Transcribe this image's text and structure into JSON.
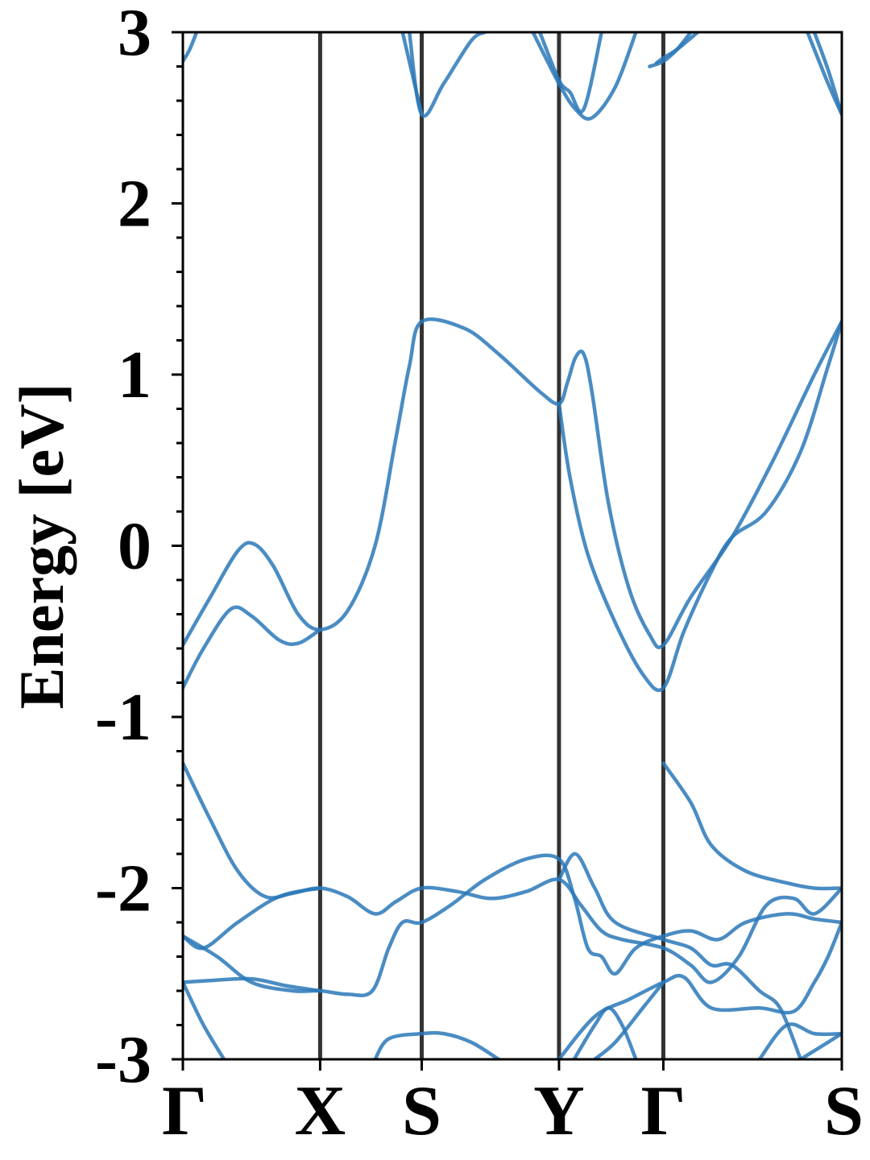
{
  "chart_data": {
    "type": "line",
    "title": "",
    "xlabel": "",
    "ylabel": "Energy [eV]",
    "ylim": [
      -3,
      3
    ],
    "yticks": [
      {
        "value": 3,
        "label": "3"
      },
      {
        "value": 2,
        "label": "2"
      },
      {
        "value": 1,
        "label": "1"
      },
      {
        "value": 0,
        "label": "0"
      },
      {
        "value": -1,
        "label": "-1"
      },
      {
        "value": -2,
        "label": "-2"
      },
      {
        "value": -3,
        "label": "-3"
      }
    ],
    "y_minor_step": 0.2,
    "kpoints": [
      {
        "label": "Γ",
        "x": 0
      },
      {
        "label": "X",
        "x": 1
      },
      {
        "label": "S",
        "x": 1.74
      },
      {
        "label": "Y",
        "x": 2.74
      },
      {
        "label": "Γ",
        "x": 3.5
      },
      {
        "label": "S",
        "x": 4.8
      }
    ],
    "xlim": [
      0,
      4.8
    ],
    "grid": false,
    "line_color": "#2a78b9",
    "kline_color": "#333333",
    "bands": [
      [
        [
          0,
          -0.58
        ],
        [
          0.2,
          -0.3
        ],
        [
          0.4,
          -0.03
        ],
        [
          0.52,
          0.01
        ],
        [
          0.66,
          -0.12
        ],
        [
          0.84,
          -0.4
        ],
        [
          1.0,
          -0.49
        ],
        [
          1.2,
          -0.38
        ],
        [
          1.4,
          0.0
        ],
        [
          1.55,
          0.62
        ],
        [
          1.65,
          1.05
        ],
        [
          1.74,
          1.31
        ],
        [
          2.05,
          1.27
        ],
        [
          2.3,
          1.12
        ],
        [
          2.6,
          0.9
        ],
        [
          2.74,
          0.83
        ],
        [
          2.8,
          0.95
        ],
        [
          2.86,
          1.1
        ],
        [
          2.92,
          1.12
        ],
        [
          2.98,
          0.9
        ],
        [
          3.1,
          0.25
        ],
        [
          3.25,
          -0.25
        ],
        [
          3.4,
          -0.52
        ],
        [
          3.5,
          -0.58
        ],
        [
          3.7,
          -0.3
        ],
        [
          4.0,
          0.05
        ],
        [
          4.3,
          0.5
        ],
        [
          4.6,
          1.0
        ],
        [
          4.8,
          1.31
        ]
      ],
      [
        [
          0,
          -0.83
        ],
        [
          0.15,
          -0.6
        ],
        [
          0.35,
          -0.37
        ],
        [
          0.5,
          -0.41
        ],
        [
          0.7,
          -0.55
        ],
        [
          0.84,
          -0.57
        ],
        [
          1.0,
          -0.49
        ]
      ],
      [
        [
          2.74,
          0.83
        ],
        [
          2.82,
          0.4
        ],
        [
          2.95,
          -0.05
        ],
        [
          3.15,
          -0.45
        ],
        [
          3.35,
          -0.75
        ],
        [
          3.5,
          -0.83
        ],
        [
          3.65,
          -0.5
        ],
        [
          3.85,
          -0.15
        ],
        [
          4.0,
          0.05
        ],
        [
          4.25,
          0.2
        ],
        [
          4.5,
          0.55
        ],
        [
          4.7,
          1.05
        ],
        [
          4.8,
          1.31
        ]
      ],
      [
        [
          0,
          -1.27
        ],
        [
          0.2,
          -1.6
        ],
        [
          0.4,
          -1.9
        ],
        [
          0.6,
          -2.05
        ],
        [
          0.8,
          -2.03
        ],
        [
          1.0,
          -2.0
        ],
        [
          1.2,
          -2.05
        ],
        [
          1.4,
          -2.15
        ],
        [
          1.55,
          -2.08
        ],
        [
          1.74,
          -2.0
        ],
        [
          2.0,
          -2.02
        ],
        [
          2.25,
          -2.06
        ],
        [
          2.5,
          -2.02
        ],
        [
          2.74,
          -1.95
        ],
        [
          2.9,
          -2.1
        ],
        [
          3.05,
          -2.25
        ],
        [
          3.2,
          -2.3
        ],
        [
          3.5,
          -2.35
        ],
        [
          3.7,
          -2.45
        ],
        [
          3.85,
          -2.55
        ],
        [
          4.05,
          -2.4
        ],
        [
          4.25,
          -2.1
        ],
        [
          4.45,
          -2.06
        ],
        [
          4.6,
          -2.15
        ],
        [
          4.8,
          -2.0
        ]
      ],
      [
        [
          0,
          -2.28
        ],
        [
          0.15,
          -2.35
        ],
        [
          0.4,
          -2.2
        ],
        [
          0.7,
          -2.05
        ],
        [
          1.0,
          -2.0
        ]
      ],
      [
        [
          0,
          -2.28
        ],
        [
          0.25,
          -2.4
        ],
        [
          0.5,
          -2.55
        ],
        [
          0.8,
          -2.6
        ],
        [
          1.0,
          -2.6
        ],
        [
          1.2,
          -2.62
        ],
        [
          1.38,
          -2.6
        ],
        [
          1.5,
          -2.35
        ],
        [
          1.6,
          -2.2
        ],
        [
          1.74,
          -2.2
        ],
        [
          1.95,
          -2.1
        ],
        [
          2.2,
          -1.95
        ],
        [
          2.5,
          -1.83
        ],
        [
          2.74,
          -1.83
        ],
        [
          2.85,
          -2.05
        ],
        [
          2.95,
          -2.35
        ],
        [
          3.05,
          -2.4
        ],
        [
          3.15,
          -2.5
        ],
        [
          3.3,
          -2.35
        ],
        [
          3.5,
          -2.28
        ],
        [
          3.7,
          -2.25
        ],
        [
          3.9,
          -2.3
        ],
        [
          4.1,
          -2.2
        ],
        [
          4.4,
          -2.15
        ],
        [
          4.6,
          -2.18
        ],
        [
          4.8,
          -2.2
        ]
      ],
      [
        [
          0,
          -2.55
        ],
        [
          0.2,
          -2.54
        ],
        [
          0.5,
          -2.53
        ],
        [
          0.75,
          -2.57
        ],
        [
          1.0,
          -2.6
        ]
      ],
      [
        [
          0,
          -2.55
        ],
        [
          0.15,
          -2.8
        ],
        [
          0.3,
          -3.0
        ]
      ],
      [
        [
          2.74,
          -1.95
        ],
        [
          2.86,
          -1.8
        ],
        [
          3.0,
          -2.0
        ],
        [
          3.15,
          -2.2
        ],
        [
          3.5,
          -2.3
        ],
        [
          3.7,
          -2.35
        ],
        [
          3.85,
          -2.45
        ],
        [
          4.0,
          -2.45
        ],
        [
          4.2,
          -2.6
        ],
        [
          4.35,
          -2.7
        ],
        [
          4.5,
          -3.0
        ]
      ],
      [
        [
          3.5,
          -1.27
        ],
        [
          3.7,
          -1.5
        ],
        [
          3.85,
          -1.75
        ],
        [
          4.1,
          -1.9
        ],
        [
          4.4,
          -1.97
        ],
        [
          4.6,
          -2.0
        ],
        [
          4.8,
          -2.0
        ]
      ],
      [
        [
          2.74,
          -3.0
        ],
        [
          3.0,
          -2.75
        ],
        [
          3.25,
          -2.65
        ],
        [
          3.5,
          -2.55
        ],
        [
          3.65,
          -2.52
        ],
        [
          3.85,
          -2.7
        ],
        [
          4.2,
          -2.7
        ],
        [
          4.45,
          -2.72
        ],
        [
          4.6,
          -2.55
        ],
        [
          4.7,
          -2.4
        ],
        [
          4.8,
          -2.2
        ]
      ],
      [
        [
          3.5,
          -2.55
        ],
        [
          3.35,
          -2.7
        ],
        [
          3.15,
          -2.9
        ],
        [
          3.0,
          -3.0
        ]
      ],
      [
        [
          1.4,
          -3.0
        ],
        [
          1.5,
          -2.88
        ],
        [
          1.74,
          -2.85
        ],
        [
          1.9,
          -2.85
        ],
        [
          2.1,
          -2.9
        ],
        [
          2.3,
          -3.0
        ]
      ],
      [
        [
          2.85,
          -3.0
        ],
        [
          3.0,
          -2.8
        ],
        [
          3.1,
          -2.7
        ],
        [
          3.2,
          -2.8
        ],
        [
          3.3,
          -3.0
        ]
      ],
      [
        [
          4.5,
          -3.0
        ],
        [
          4.6,
          -2.95
        ],
        [
          4.7,
          -2.9
        ],
        [
          4.8,
          -2.85
        ]
      ],
      [
        [
          4.2,
          -3.0
        ],
        [
          4.4,
          -2.8
        ],
        [
          4.6,
          -2.85
        ],
        [
          4.8,
          -2.85
        ]
      ],
      [
        [
          0,
          2.83
        ],
        [
          0.05,
          2.9
        ],
        [
          0.1,
          3.0
        ]
      ],
      [
        [
          1.65,
          3.0
        ],
        [
          1.74,
          2.52
        ],
        [
          1.9,
          2.7
        ],
        [
          2.1,
          2.95
        ],
        [
          2.2,
          3.0
        ]
      ],
      [
        [
          1.6,
          3.0
        ],
        [
          1.74,
          2.52
        ]
      ],
      [
        [
          2.55,
          3.0
        ],
        [
          2.74,
          2.7
        ],
        [
          2.86,
          2.55
        ],
        [
          2.98,
          2.5
        ],
        [
          3.15,
          2.68
        ],
        [
          3.3,
          3.0
        ]
      ],
      [
        [
          2.6,
          3.0
        ],
        [
          2.74,
          2.72
        ],
        [
          2.82,
          2.65
        ],
        [
          2.92,
          2.55
        ],
        [
          3.05,
          3.0
        ]
      ],
      [
        [
          3.4,
          2.8
        ],
        [
          3.5,
          2.83
        ],
        [
          3.6,
          2.9
        ],
        [
          3.7,
          3.0
        ]
      ],
      [
        [
          3.45,
          2.82
        ],
        [
          3.5,
          2.85
        ],
        [
          3.6,
          2.9
        ],
        [
          3.75,
          3.0
        ]
      ],
      [
        [
          4.55,
          3.0
        ],
        [
          4.7,
          2.7
        ],
        [
          4.8,
          2.52
        ]
      ],
      [
        [
          4.6,
          3.0
        ],
        [
          4.7,
          2.78
        ],
        [
          4.8,
          2.52
        ]
      ]
    ]
  }
}
